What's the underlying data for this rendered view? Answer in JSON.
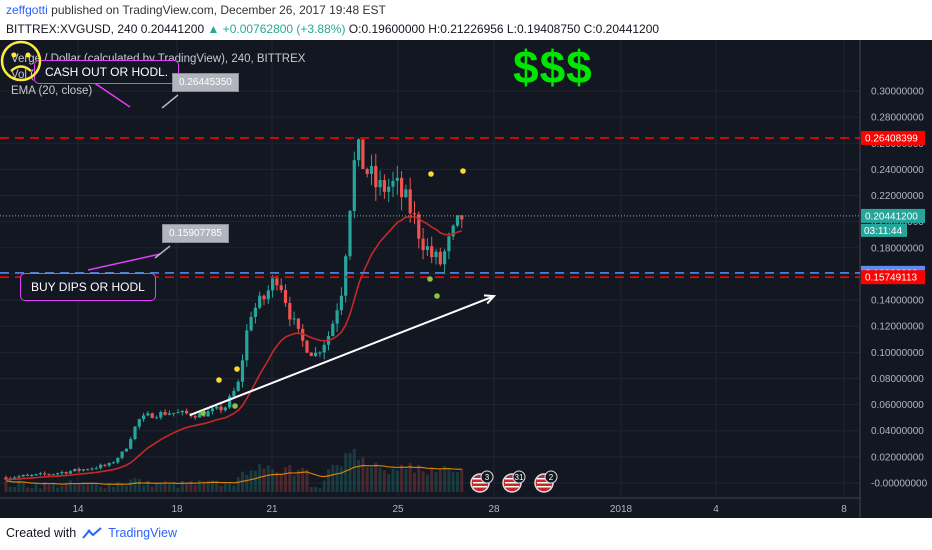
{
  "header": {
    "author": "zeffgotti",
    "published_text": "published on TradingView.com, December 26, 2017 19:48 EST",
    "symbol": "BITTREX:XVGUSD, 240",
    "last": "0.20441200",
    "change": "▲ +0.00762800 (+3.88%)",
    "ohlc": "O:0.19600000 H:0.21226956 L:0.19408750 C:0.20441200"
  },
  "legend": {
    "line1": "Verge / Dollar (calculated by TradingView), 240, BITTREX",
    "line2": "Vol (20)",
    "line3": "EMA (20, close)"
  },
  "annotations": {
    "cashout": "CASH OUT OR HODL.",
    "buydips": "BUY DIPS OR HODL",
    "tag_top": "0.26445350",
    "tag_mid": "0.15907785",
    "money": "$$$",
    "countdown": "03:11:44"
  },
  "events": [
    "3",
    "31",
    "2"
  ],
  "footer": {
    "created_with": "Created with",
    "brand": "TradingView"
  },
  "colors": {
    "up": "#26a69a",
    "down": "#ef5350",
    "ema": "#c62828",
    "vol_ema": "#ff9800",
    "hline": "#ff0000",
    "blue_line": "#5b8def",
    "money": "#00e600",
    "frown": "#ffeb3b",
    "accent": "#e040fb"
  },
  "chart_data": {
    "type": "candlestick",
    "title": "Verge / Dollar (calculated by TradingView), 240, BITTREX",
    "y_ticks": [
      "0.30000000",
      "0.28000000",
      "0.26000000",
      "0.24000000",
      "0.22000000",
      "0.20000000",
      "0.18000000",
      "0.16000000",
      "0.14000000",
      "0.12000000",
      "0.10000000",
      "0.08000000",
      "0.06000000",
      "0.04000000",
      "0.02000000",
      "-0.00000000"
    ],
    "x_ticks": [
      "14",
      "18",
      "21",
      "25",
      "28",
      "2018",
      "4",
      "8"
    ],
    "ylim": [
      -0.005,
      0.305
    ],
    "horizontal_lines": [
      {
        "value": 0.26408399,
        "label": "0.26408399",
        "color": "#ff0000",
        "style": "dashed"
      },
      {
        "value": 0.16080899,
        "label": "0.16080899",
        "color": "#5b8def",
        "style": "dashed"
      },
      {
        "value": 0.15749113,
        "label": "0.15749113",
        "color": "#ff0000",
        "style": "dashed"
      }
    ],
    "last_price": {
      "value": 0.204412,
      "label": "0.20441200"
    },
    "trendline": {
      "from": [
        0.15,
        0.052
      ],
      "to": [
        0.45,
        0.143
      ]
    },
    "ema_line": "smoothed EMA(20) of close",
    "grid": true,
    "legend_position": "top-left"
  }
}
